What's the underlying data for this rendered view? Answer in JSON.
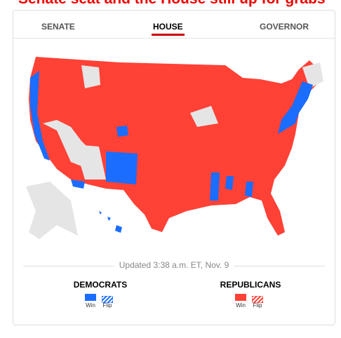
{
  "header": {
    "headline": "Senate seat and the House still up for grabs"
  },
  "tabs": [
    "SENATE",
    "HOUSE",
    "GOVERNOR"
  ],
  "updated": "Updated 3:38 a.m. ET, Nov. 9",
  "legend": [
    {
      "party": "DEMOCRATS",
      "win": "Win",
      "flip": "Flip"
    },
    {
      "party": "REPUBLICANS",
      "win": "Win",
      "flip": "Flip"
    }
  ]
}
